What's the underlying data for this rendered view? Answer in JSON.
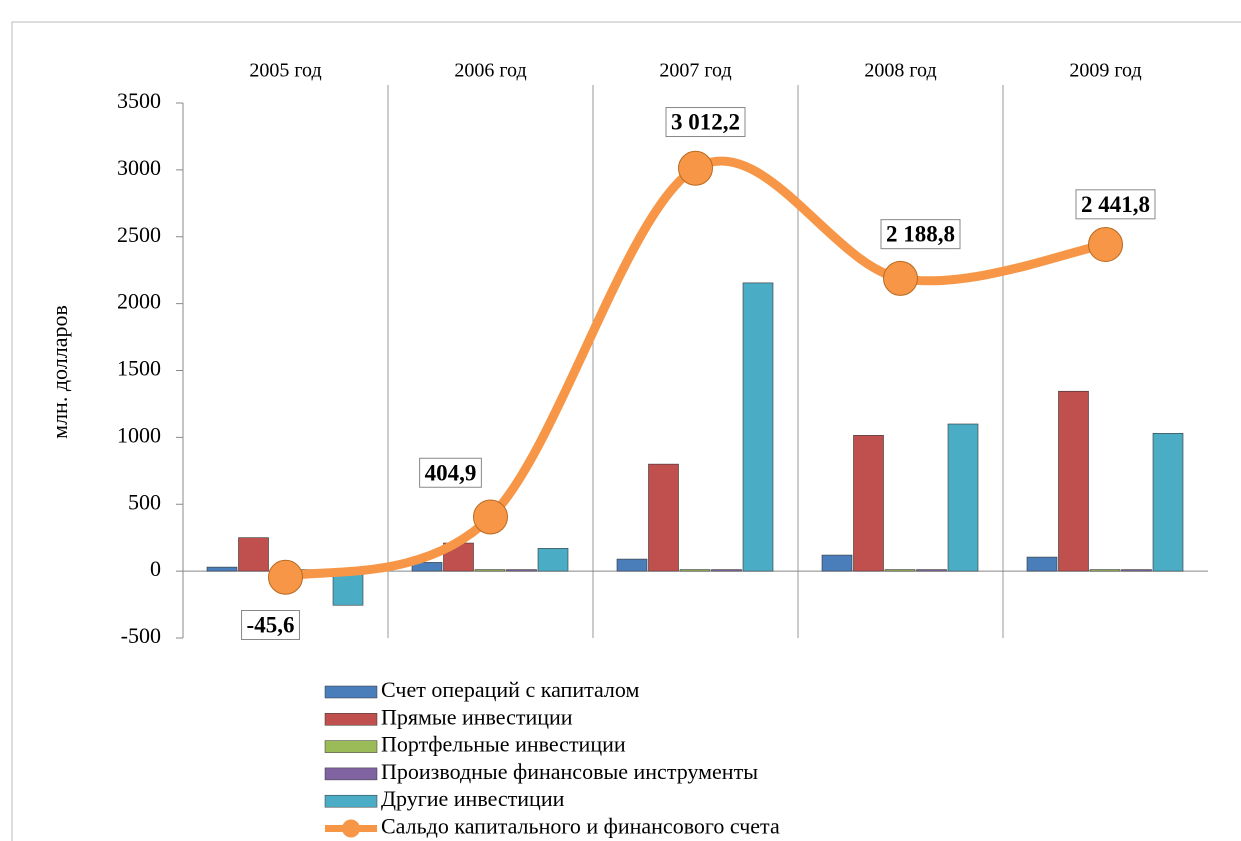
{
  "chart_data": {
    "type": "bar",
    "y_label": "млн. долларов",
    "categories": [
      "2005 год",
      "2006 год",
      "2007 год",
      "2008 год",
      "2009 год"
    ],
    "ylim": [
      -500,
      3500
    ],
    "yticks": [
      -500,
      0,
      500,
      1000,
      1500,
      2000,
      2500,
      3000,
      3500
    ],
    "series": [
      {
        "name": "Счет операций с капиталом",
        "color": "#4a7ebb",
        "values": [
          30,
          65,
          90,
          120,
          105
        ]
      },
      {
        "name": "Прямые инвестиции",
        "color": "#c0504d",
        "values": [
          250,
          210,
          800,
          1015,
          1345
        ]
      },
      {
        "name": "Портфельные инвестиции",
        "color": "#9bbb59",
        "values": [
          0,
          5,
          5,
          5,
          5
        ]
      },
      {
        "name": "Производные финансовые инструменты",
        "color": "#8064a2",
        "values": [
          0,
          0,
          0,
          0,
          0
        ]
      },
      {
        "name": "Другие инвестиции",
        "color": "#4bacc6",
        "values": [
          -255,
          170,
          2155,
          1100,
          1030
        ]
      },
      {
        "name": "Сальдо капитального и финансового счета",
        "color": "#f79646",
        "type": "line",
        "values": [
          -45.6,
          404.9,
          3012.2,
          2188.8,
          2441.8
        ],
        "value_labels": [
          "-45,6",
          "404,9",
          "3 012,2",
          "2 188,8",
          "2 441,8"
        ]
      }
    ]
  }
}
